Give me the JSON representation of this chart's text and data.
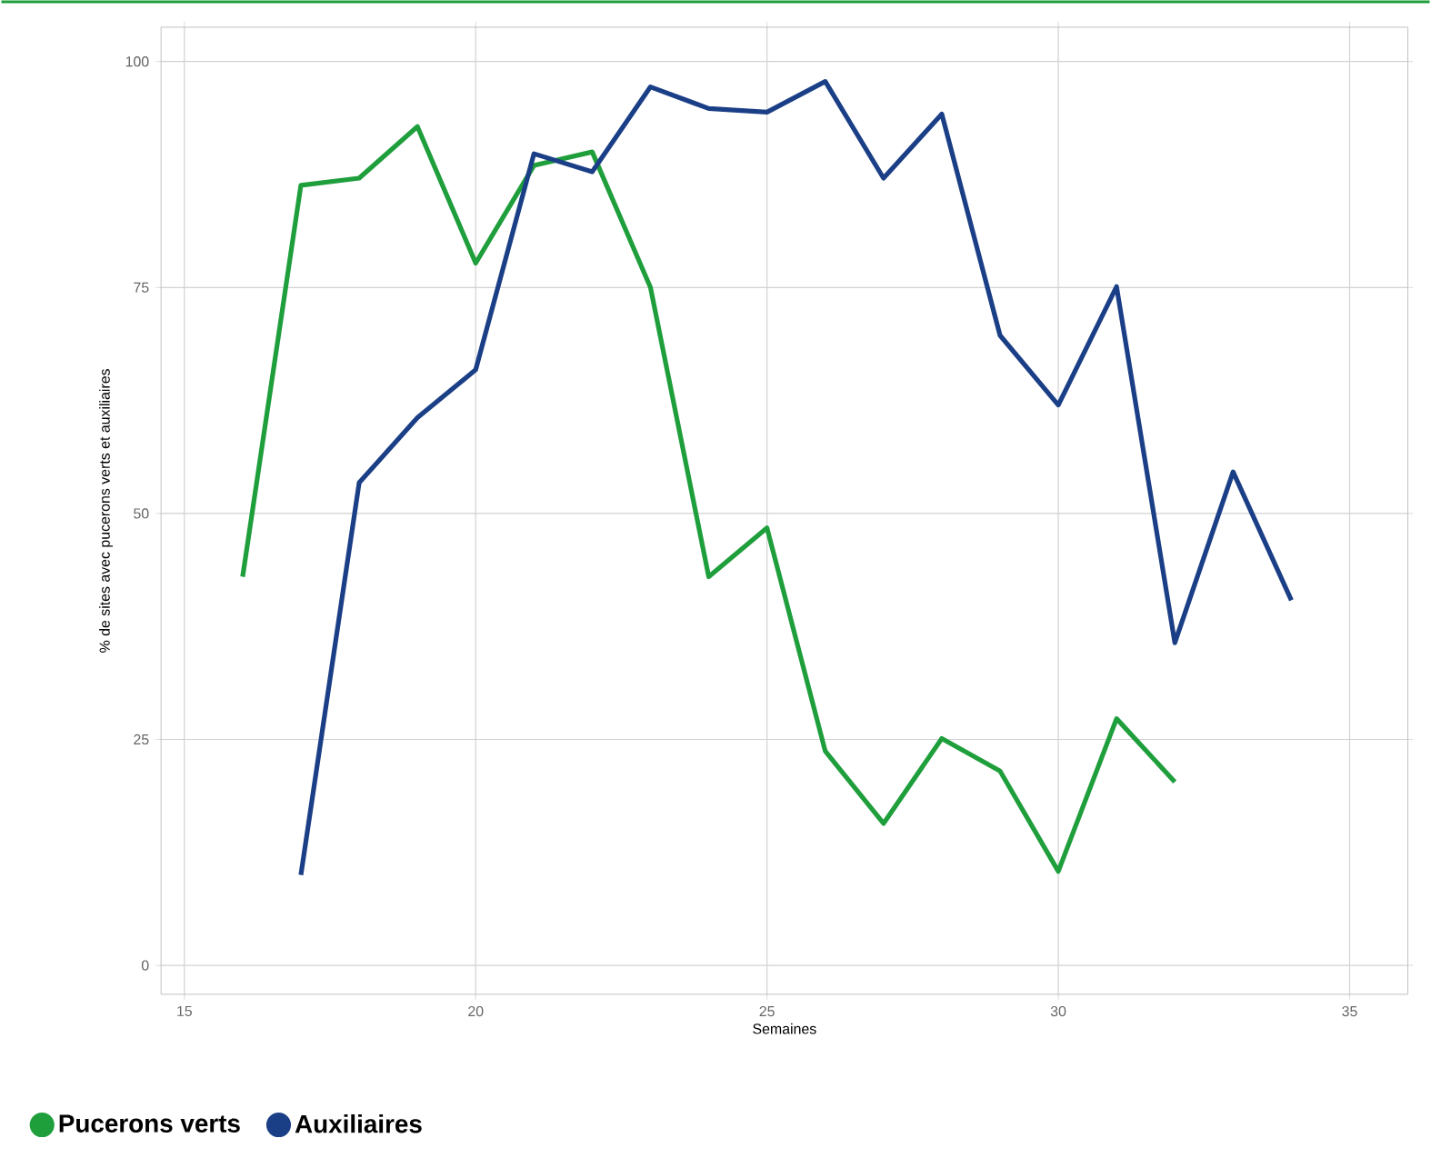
{
  "chart_data": {
    "type": "line",
    "xlabel": "Semaines",
    "ylabel": "% de sites avec pucerons verts et auxiliaires",
    "xlim": [
      14.6,
      36
    ],
    "ylim": [
      -3.2,
      103.8
    ],
    "xticks": [
      15,
      20,
      25,
      30,
      35
    ],
    "yticks": [
      0,
      25,
      50,
      75,
      100
    ],
    "grid": true,
    "legend": "bottom left",
    "marker": "none",
    "line_style": "solid",
    "series": [
      {
        "name": "Pucerons verts",
        "color": "#1f9e3c",
        "x": [
          16,
          17,
          18,
          19,
          20,
          21,
          22,
          23,
          24,
          25,
          26,
          27,
          28,
          29,
          30,
          31,
          32
        ],
        "values": [
          43,
          86.3,
          87.1,
          92.8,
          77.7,
          88.5,
          90,
          75,
          43,
          48.4,
          23.7,
          15.7,
          25.1,
          21.5,
          10.4,
          27.3,
          20.3
        ]
      },
      {
        "name": "Auxiliaires",
        "color": "#1b3f86",
        "x": [
          17,
          18,
          19,
          20,
          21,
          22,
          23,
          24,
          25,
          26,
          27,
          28,
          29,
          30,
          31,
          32,
          33,
          34
        ],
        "values": [
          10,
          53.4,
          60.6,
          65.9,
          89.8,
          87.8,
          97.2,
          94.8,
          94.4,
          97.8,
          87.1,
          94.2,
          69.7,
          62,
          75.1,
          35.7,
          54.6,
          40.4
        ]
      }
    ]
  }
}
